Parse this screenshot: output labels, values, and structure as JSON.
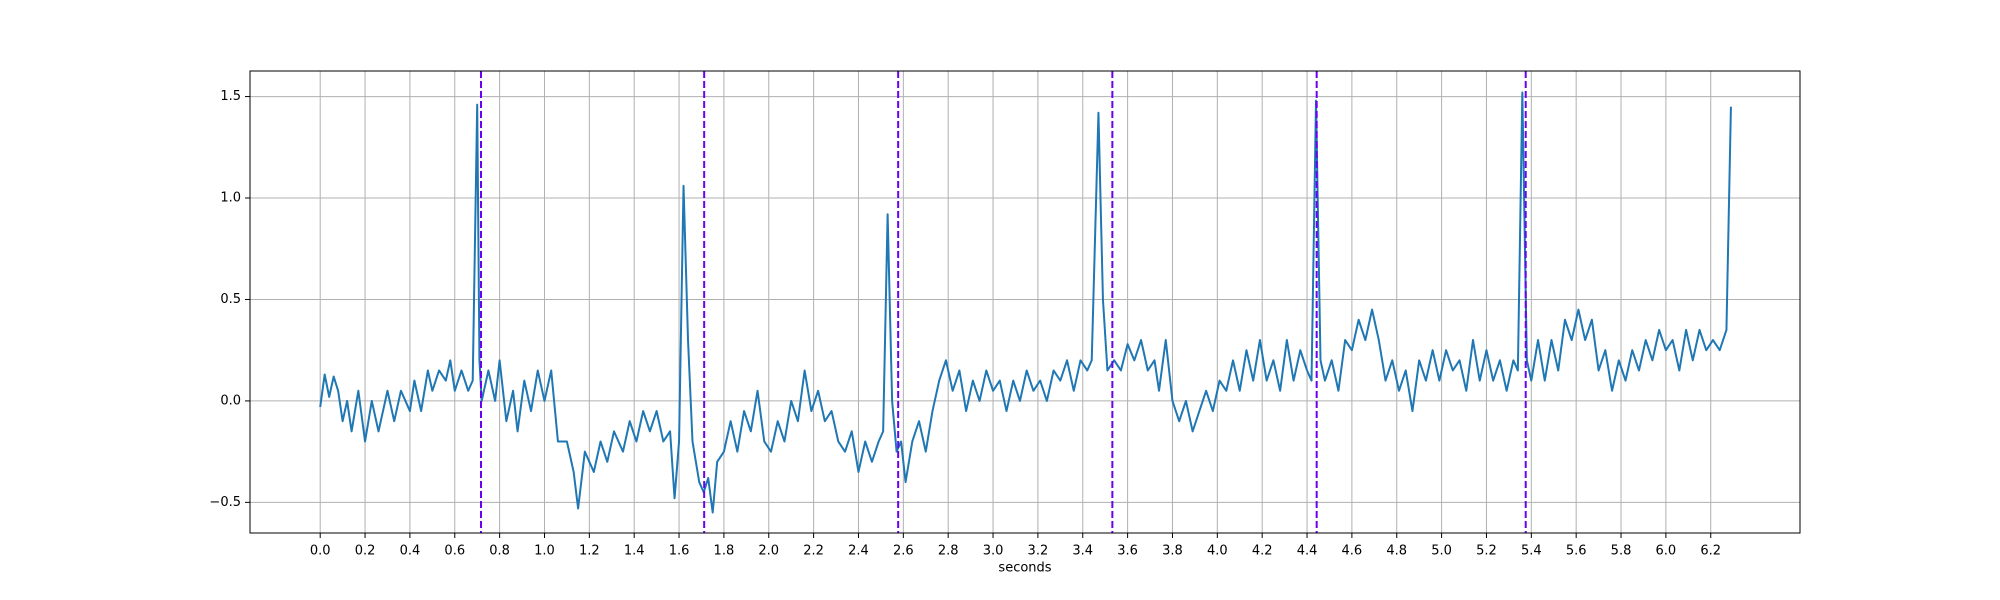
{
  "chart_data": {
    "type": "line",
    "xlabel": "seconds",
    "xlim": [
      -0.313,
      6.598
    ],
    "ylim": [
      -0.651,
      1.626
    ],
    "xticks": [
      {
        "value": 0,
        "label": "0.0"
      },
      0.2,
      0.4,
      0.6,
      0.8,
      {
        "value": 1,
        "label": "1.0"
      },
      1.2,
      1.4,
      1.6,
      1.8,
      {
        "value": 2,
        "label": "2.0"
      },
      2.2,
      2.4,
      2.6,
      2.8,
      {
        "value": 3,
        "label": "3.0"
      },
      3.2,
      3.4,
      3.6,
      3.8,
      {
        "value": 4,
        "label": "4.0"
      },
      4.2,
      4.4,
      4.6,
      4.8,
      {
        "value": 5,
        "label": "5.0"
      },
      5.2,
      5.4,
      5.6,
      5.8,
      {
        "value": 6,
        "label": "6.0"
      },
      6.2
    ],
    "yticks": [
      {
        "value": -0.5,
        "label": "−0.5"
      },
      {
        "value": 0,
        "label": "0.0"
      },
      0.5,
      {
        "value": 1,
        "label": "1.0"
      },
      1.5
    ],
    "grid": true,
    "vlines": {
      "color": "#6a00f4",
      "x": [
        0.717,
        1.712,
        2.577,
        3.532,
        4.443,
        5.375
      ]
    },
    "x": [
      0.0,
      0.02,
      0.04,
      0.06,
      0.08,
      0.1,
      0.12,
      0.14,
      0.17,
      0.2,
      0.23,
      0.26,
      0.3,
      0.33,
      0.36,
      0.4,
      0.42,
      0.45,
      0.48,
      0.5,
      0.53,
      0.56,
      0.58,
      0.6,
      0.63,
      0.66,
      0.68,
      0.7,
      0.71,
      0.72,
      0.75,
      0.78,
      0.8,
      0.83,
      0.86,
      0.88,
      0.91,
      0.94,
      0.97,
      1.0,
      1.03,
      1.06,
      1.1,
      1.13,
      1.15,
      1.18,
      1.22,
      1.25,
      1.28,
      1.31,
      1.35,
      1.38,
      1.41,
      1.44,
      1.47,
      1.5,
      1.53,
      1.56,
      1.58,
      1.6,
      1.62,
      1.64,
      1.66,
      1.69,
      1.71,
      1.73,
      1.75,
      1.77,
      1.8,
      1.83,
      1.86,
      1.89,
      1.92,
      1.95,
      1.98,
      2.01,
      2.04,
      2.07,
      2.1,
      2.13,
      2.16,
      2.19,
      2.22,
      2.25,
      2.28,
      2.31,
      2.34,
      2.37,
      2.4,
      2.43,
      2.46,
      2.49,
      2.51,
      2.53,
      2.55,
      2.57,
      2.59,
      2.61,
      2.64,
      2.67,
      2.7,
      2.73,
      2.76,
      2.79,
      2.82,
      2.85,
      2.88,
      2.91,
      2.94,
      2.97,
      3.0,
      3.03,
      3.06,
      3.09,
      3.12,
      3.15,
      3.18,
      3.21,
      3.24,
      3.27,
      3.3,
      3.33,
      3.36,
      3.39,
      3.42,
      3.44,
      3.47,
      3.49,
      3.51,
      3.54,
      3.57,
      3.6,
      3.63,
      3.66,
      3.69,
      3.72,
      3.74,
      3.77,
      3.8,
      3.83,
      3.86,
      3.89,
      3.92,
      3.95,
      3.98,
      4.01,
      4.04,
      4.07,
      4.1,
      4.13,
      4.16,
      4.19,
      4.22,
      4.25,
      4.28,
      4.31,
      4.34,
      4.37,
      4.4,
      4.42,
      4.44,
      4.46,
      4.48,
      4.51,
      4.54,
      4.57,
      4.6,
      4.63,
      4.66,
      4.69,
      4.72,
      4.75,
      4.78,
      4.81,
      4.84,
      4.87,
      4.9,
      4.93,
      4.96,
      4.99,
      5.02,
      5.05,
      5.08,
      5.11,
      5.14,
      5.17,
      5.2,
      5.23,
      5.26,
      5.29,
      5.32,
      5.34,
      5.36,
      5.38,
      5.4,
      5.43,
      5.46,
      5.49,
      5.52,
      5.55,
      5.58,
      5.61,
      5.64,
      5.67,
      5.7,
      5.73,
      5.76,
      5.79,
      5.82,
      5.85,
      5.88,
      5.91,
      5.94,
      5.97,
      6.0,
      6.03,
      6.06,
      6.09,
      6.12,
      6.15,
      6.18,
      6.21,
      6.24,
      6.27,
      6.29
    ],
    "series": [
      {
        "color": "#1f77b4",
        "values": [
          -0.03,
          0.13,
          0.02,
          0.12,
          0.05,
          -0.1,
          0.0,
          -0.15,
          0.05,
          -0.2,
          0.0,
          -0.15,
          0.05,
          -0.1,
          0.05,
          -0.05,
          0.1,
          -0.05,
          0.15,
          0.05,
          0.15,
          0.1,
          0.2,
          0.05,
          0.15,
          0.05,
          0.1,
          1.46,
          0.2,
          0.0,
          0.15,
          0.0,
          0.2,
          -0.1,
          0.05,
          -0.15,
          0.1,
          -0.05,
          0.15,
          0.0,
          0.15,
          -0.2,
          -0.2,
          -0.35,
          -0.53,
          -0.25,
          -0.35,
          -0.2,
          -0.3,
          -0.15,
          -0.25,
          -0.1,
          -0.2,
          -0.05,
          -0.15,
          -0.05,
          -0.2,
          -0.15,
          -0.48,
          -0.2,
          1.06,
          0.3,
          -0.2,
          -0.4,
          -0.45,
          -0.38,
          -0.55,
          -0.3,
          -0.25,
          -0.1,
          -0.25,
          -0.05,
          -0.15,
          0.05,
          -0.2,
          -0.25,
          -0.1,
          -0.2,
          0.0,
          -0.1,
          0.15,
          -0.05,
          0.05,
          -0.1,
          -0.05,
          -0.2,
          -0.25,
          -0.15,
          -0.35,
          -0.2,
          -0.3,
          -0.2,
          -0.15,
          0.92,
          0.0,
          -0.25,
          -0.2,
          -0.4,
          -0.2,
          -0.1,
          -0.25,
          -0.05,
          0.1,
          0.2,
          0.05,
          0.15,
          -0.05,
          0.1,
          0.0,
          0.15,
          0.05,
          0.1,
          -0.05,
          0.1,
          0.0,
          0.15,
          0.05,
          0.1,
          0.0,
          0.15,
          0.1,
          0.2,
          0.05,
          0.2,
          0.15,
          0.2,
          1.42,
          0.5,
          0.15,
          0.2,
          0.15,
          0.28,
          0.2,
          0.3,
          0.15,
          0.2,
          0.05,
          0.3,
          0.0,
          -0.1,
          0.0,
          -0.15,
          -0.05,
          0.05,
          -0.05,
          0.1,
          0.05,
          0.2,
          0.05,
          0.25,
          0.1,
          0.3,
          0.1,
          0.2,
          0.05,
          0.3,
          0.1,
          0.25,
          0.15,
          0.1,
          1.48,
          0.2,
          0.1,
          0.2,
          0.05,
          0.3,
          0.25,
          0.4,
          0.3,
          0.45,
          0.3,
          0.1,
          0.2,
          0.05,
          0.15,
          -0.05,
          0.2,
          0.1,
          0.25,
          0.1,
          0.25,
          0.15,
          0.2,
          0.05,
          0.3,
          0.1,
          0.25,
          0.1,
          0.2,
          0.05,
          0.2,
          0.15,
          1.52,
          0.2,
          0.1,
          0.3,
          0.1,
          0.3,
          0.15,
          0.4,
          0.3,
          0.45,
          0.3,
          0.4,
          0.15,
          0.25,
          0.05,
          0.2,
          0.1,
          0.25,
          0.15,
          0.3,
          0.2,
          0.35,
          0.25,
          0.3,
          0.15,
          0.35,
          0.2,
          0.35,
          0.25,
          0.3,
          0.25,
          0.35,
          1.45
        ]
      }
    ]
  }
}
